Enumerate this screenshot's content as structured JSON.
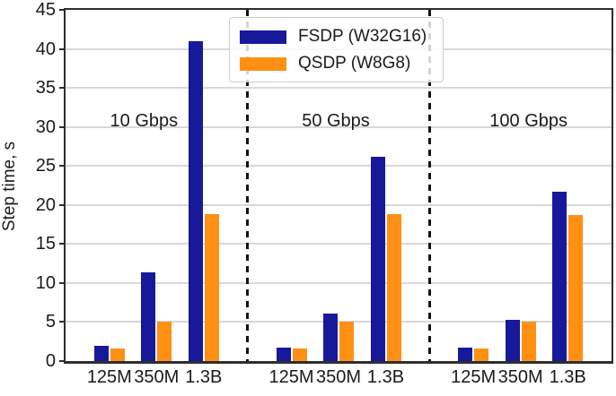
{
  "chart_data": {
    "type": "bar",
    "title": "",
    "ylabel": "Step time, s",
    "xlabel": "",
    "ylim": [
      0,
      45
    ],
    "yticks": [
      0,
      5,
      10,
      15,
      20,
      25,
      30,
      35,
      40,
      45
    ],
    "grid": "horizontal",
    "legend_position": "upper center-right",
    "group_labels": [
      "10 Gbps",
      "50 Gbps",
      "100 Gbps"
    ],
    "categories": [
      "125M",
      "350M",
      "1.3B"
    ],
    "series": [
      {
        "name": "FSDP (W32G16)",
        "color": "#18189B",
        "values": [
          [
            2.0,
            11.4,
            41.0
          ],
          [
            1.7,
            6.1,
            26.2
          ],
          [
            1.7,
            5.3,
            21.7
          ]
        ]
      },
      {
        "name": "QSDP (W8G8)",
        "color": "#FF9014",
        "values": [
          [
            1.6,
            5.1,
            18.8
          ],
          [
            1.6,
            5.1,
            18.8
          ],
          [
            1.6,
            5.0,
            18.7
          ]
        ]
      }
    ],
    "separators": {
      "style": "dashed",
      "color": "#111111",
      "between_groups": true
    }
  },
  "style_colors": {
    "grid": "#D8D8D8",
    "spine": "#2E2E2E",
    "text": "#1A1A1A",
    "legend_border": "#CCCCCC"
  }
}
